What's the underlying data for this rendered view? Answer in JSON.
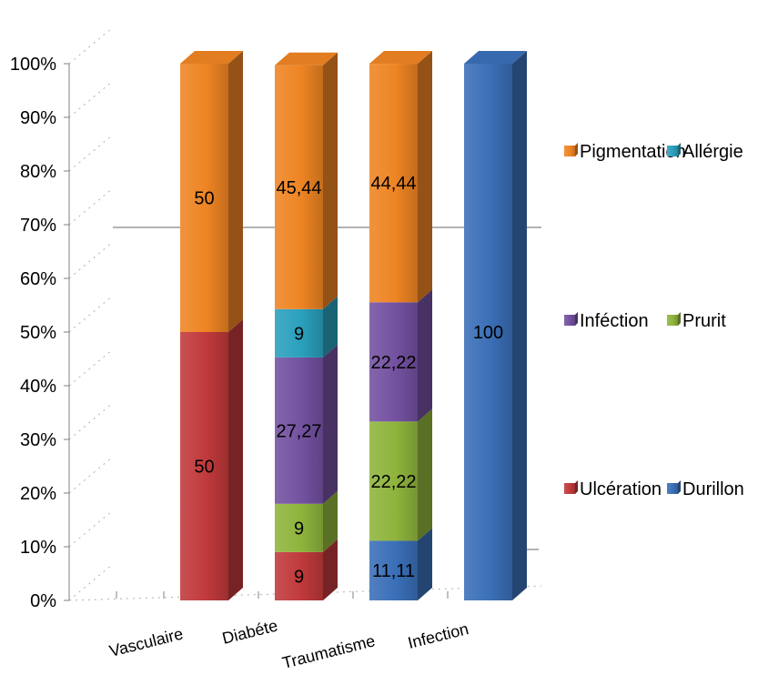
{
  "chart_data": {
    "type": "bar",
    "stacked": true,
    "percent_stacked": true,
    "three_d": true,
    "title": "",
    "xlabel": "",
    "ylabel": "",
    "ylim": [
      0,
      100
    ],
    "y_ticks": [
      "0%",
      "10%",
      "20%",
      "30%",
      "40%",
      "50%",
      "60%",
      "70%",
      "80%",
      "90%",
      "100%"
    ],
    "categories": [
      "Vasculaire",
      "Diabéte",
      "Traumatisme",
      "Infection"
    ],
    "series": [
      {
        "name": "Ulcération",
        "color": "#c0393b",
        "values": [
          50,
          9,
          null,
          null
        ],
        "labels": [
          "50",
          "9",
          "",
          ""
        ]
      },
      {
        "name": "Durillon",
        "color": "#3a6fb7",
        "values": [
          null,
          null,
          11.11,
          100
        ],
        "labels": [
          "",
          "",
          "11,11",
          "100"
        ]
      },
      {
        "name": "Prurit",
        "color": "#8fb43c",
        "values": [
          null,
          9,
          22.22,
          null
        ],
        "labels": [
          "",
          "9",
          "22,22",
          ""
        ]
      },
      {
        "name": "Inféction",
        "color": "#7351a0",
        "values": [
          null,
          27.27,
          22.22,
          null
        ],
        "labels": [
          "",
          "27,27",
          "22,22",
          ""
        ]
      },
      {
        "name": "Allérgie",
        "color": "#2aa0bd",
        "values": [
          null,
          9,
          null,
          null
        ],
        "labels": [
          "",
          "9",
          "",
          ""
        ]
      },
      {
        "name": "Pigmentation",
        "color": "#ee8423",
        "values": [
          50,
          45.44,
          44.44,
          null
        ],
        "labels": [
          "50",
          "45,44",
          "44,44",
          ""
        ]
      }
    ],
    "legend": {
      "position": "right",
      "rows": [
        [
          "Pigmentation",
          "Allérgie"
        ],
        [
          "Inféction",
          "Prurit"
        ],
        [
          "Ulcération",
          "Durillon"
        ]
      ]
    },
    "grid": true
  }
}
